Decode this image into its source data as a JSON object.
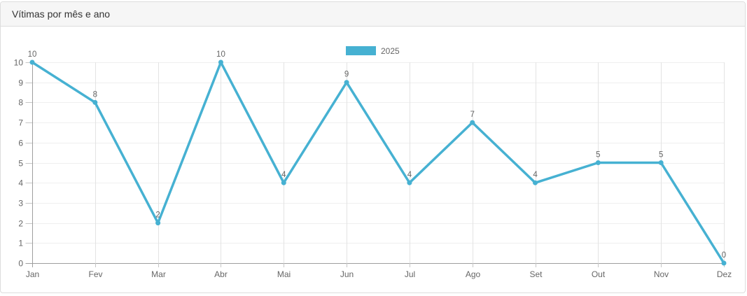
{
  "panel": {
    "title": "Vítimas por mês e ano"
  },
  "legend": {
    "label": "2025"
  },
  "chart_data": {
    "type": "line",
    "title": "Vítimas por mês e ano",
    "categories": [
      "Jan",
      "Fev",
      "Mar",
      "Abr",
      "Mai",
      "Jun",
      "Jul",
      "Ago",
      "Set",
      "Out",
      "Nov",
      "Dez"
    ],
    "series": [
      {
        "name": "2025",
        "values": [
          10,
          8,
          2,
          10,
          4,
          9,
          4,
          7,
          4,
          5,
          5,
          0
        ]
      }
    ],
    "ylabel": "",
    "xlabel": "",
    "ylim": [
      0,
      10
    ],
    "yticks": [
      0,
      1,
      2,
      3,
      4,
      5,
      6,
      7,
      8,
      9,
      10
    ],
    "grid": true,
    "legend_position": "top",
    "line_color": "#46b1d2",
    "tick_label_color": "#666",
    "data_label_color": "#666"
  }
}
